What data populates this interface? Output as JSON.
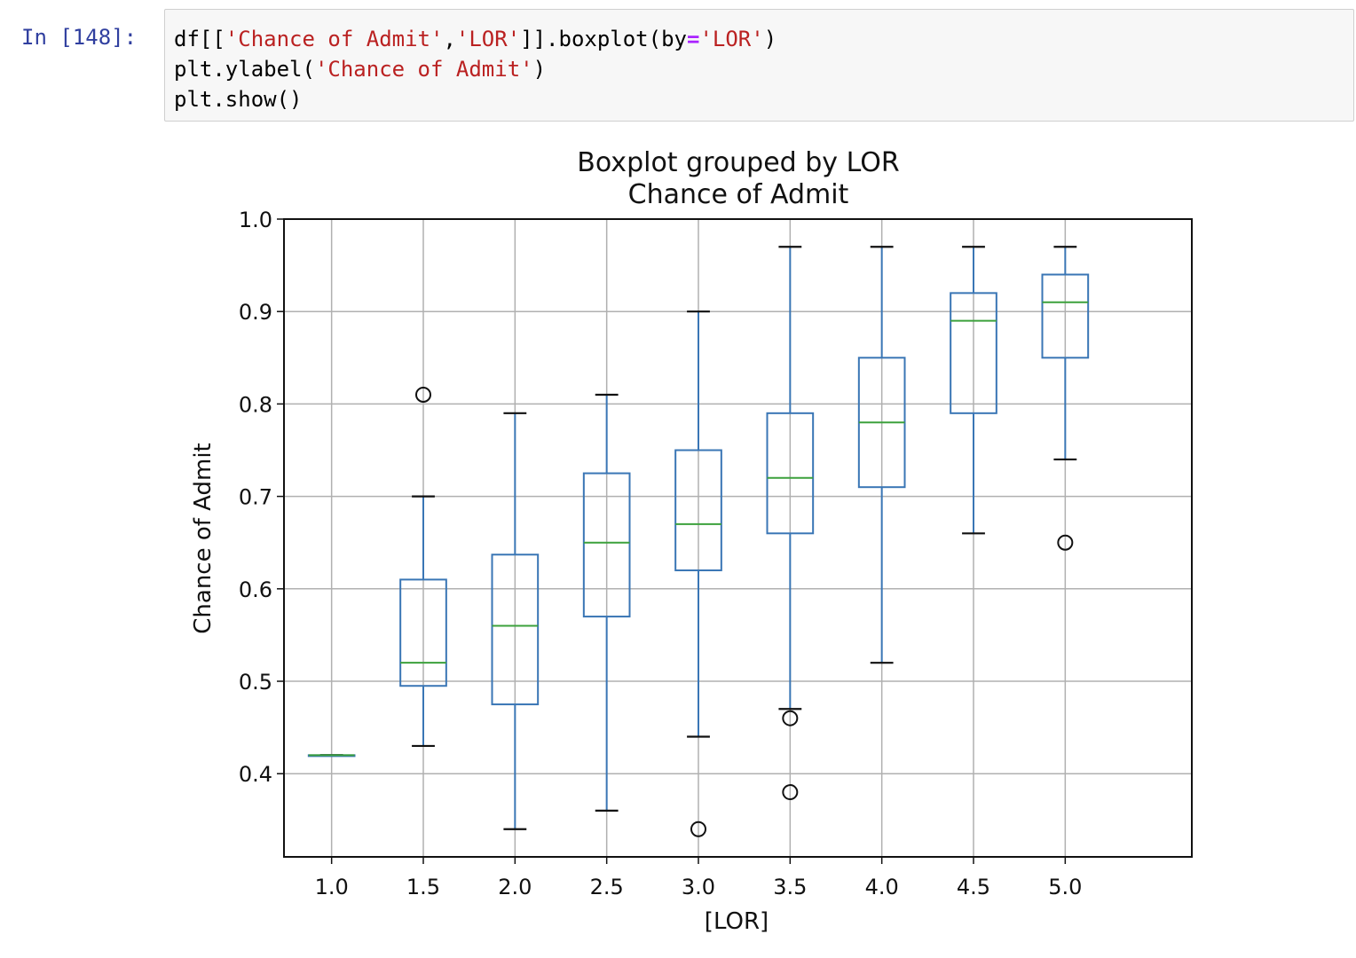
{
  "cell": {
    "prompt": "In [148]:",
    "lines": [
      [
        {
          "t": "df[[",
          "k": "plain"
        },
        {
          "t": "'Chance of Admit'",
          "k": "str"
        },
        {
          "t": ",",
          "k": "plain"
        },
        {
          "t": "'LOR'",
          "k": "str"
        },
        {
          "t": "]].boxplot(by",
          "k": "plain"
        },
        {
          "t": "=",
          "k": "op"
        },
        {
          "t": "'LOR'",
          "k": "str"
        },
        {
          "t": ")",
          "k": "plain"
        }
      ],
      [
        {
          "t": "plt.ylabel(",
          "k": "plain"
        },
        {
          "t": "'Chance of Admit'",
          "k": "str"
        },
        {
          "t": ")",
          "k": "plain"
        }
      ],
      [
        {
          "t": "plt.show()",
          "k": "plain"
        }
      ]
    ]
  },
  "colors": {
    "box": "#3a76b5",
    "median": "#3ca13c",
    "whisker": "#3a76b5",
    "cap": "#111111",
    "grid": "#b0b0b0",
    "string": "#ba2121",
    "operator": "#aa22ff",
    "prompt": "#303f9f"
  },
  "chart_data": {
    "type": "boxplot",
    "title": "Boxplot grouped by LOR",
    "subtitle": "Chance of Admit",
    "xlabel": "[LOR]",
    "ylabel": "Chance of Admit",
    "ylim": [
      0.31,
      1.0
    ],
    "yticks": [
      "0.4",
      "0.5",
      "0.6",
      "0.7",
      "0.8",
      "0.9",
      "1.0"
    ],
    "grid": true,
    "categories": [
      "1.0",
      "1.5",
      "2.0",
      "2.5",
      "3.0",
      "3.5",
      "4.0",
      "4.5",
      "5.0"
    ],
    "boxes": [
      {
        "whislo": 0.42,
        "q1": 0.42,
        "med": 0.42,
        "q3": 0.42,
        "whishi": 0.42,
        "fliers": []
      },
      {
        "whislo": 0.43,
        "q1": 0.495,
        "med": 0.52,
        "q3": 0.61,
        "whishi": 0.7,
        "fliers": [
          0.81
        ]
      },
      {
        "whislo": 0.34,
        "q1": 0.475,
        "med": 0.56,
        "q3": 0.637,
        "whishi": 0.79,
        "fliers": []
      },
      {
        "whislo": 0.36,
        "q1": 0.57,
        "med": 0.65,
        "q3": 0.725,
        "whishi": 0.81,
        "fliers": []
      },
      {
        "whislo": 0.44,
        "q1": 0.62,
        "med": 0.67,
        "q3": 0.75,
        "whishi": 0.9,
        "fliers": [
          0.34
        ]
      },
      {
        "whislo": 0.47,
        "q1": 0.66,
        "med": 0.72,
        "q3": 0.79,
        "whishi": 0.97,
        "fliers": [
          0.46,
          0.38
        ]
      },
      {
        "whislo": 0.52,
        "q1": 0.71,
        "med": 0.78,
        "q3": 0.85,
        "whishi": 0.97,
        "fliers": []
      },
      {
        "whislo": 0.66,
        "q1": 0.79,
        "med": 0.89,
        "q3": 0.92,
        "whishi": 0.97,
        "fliers": []
      },
      {
        "whislo": 0.74,
        "q1": 0.85,
        "med": 0.91,
        "q3": 0.94,
        "whishi": 0.97,
        "fliers": [
          0.65
        ]
      }
    ]
  }
}
